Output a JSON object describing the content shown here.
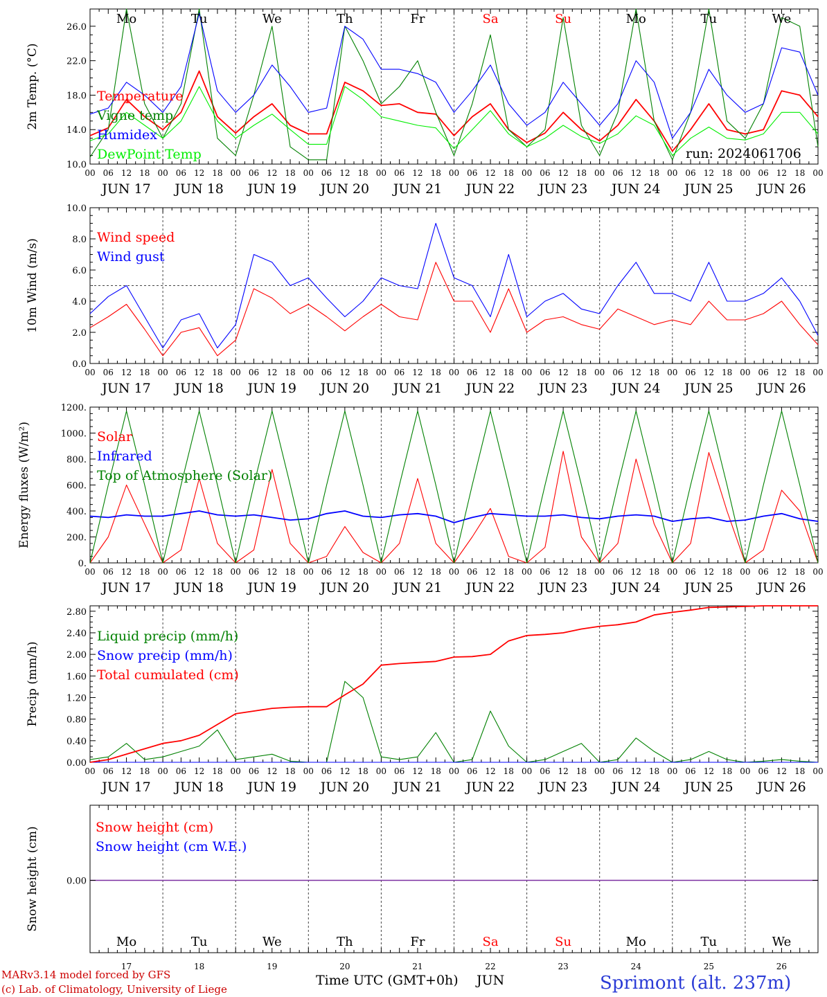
{
  "run_label": "run: 2024061706",
  "footer": {
    "model": "MARv3.14 model forced by GFS",
    "credit": "(c) Lab. of Climatology, University of Liege",
    "xaxis_title": "Time UTC (GMT+0h)",
    "month": "JUN",
    "station": "Sprimont (alt. 237m)"
  },
  "days": {
    "names": [
      "Mo",
      "Tu",
      "We",
      "Th",
      "Fr",
      "Sa",
      "Su",
      "Mo",
      "Tu",
      "We"
    ],
    "weekend_flags": [
      false,
      false,
      false,
      false,
      false,
      true,
      true,
      false,
      false,
      false
    ],
    "dates": [
      "JUN 17",
      "JUN 18",
      "JUN 19",
      "JUN 20",
      "JUN 21",
      "JUN 22",
      "JUN 23",
      "JUN 24",
      "JUN 25",
      "JUN 26"
    ],
    "numbers": [
      "17",
      "18",
      "19",
      "20",
      "21",
      "22",
      "23",
      "24",
      "25",
      "26"
    ],
    "hours": [
      "00",
      "06",
      "12",
      "18"
    ],
    "end_hour": "00"
  },
  "colors": {
    "red": "#ff0000",
    "green": "#008000",
    "blue": "#0000ff",
    "lightgreen": "#00ee00",
    "weekend": "#ff0000"
  },
  "chart_data": [
    {
      "id": "temp",
      "type": "line",
      "ylabel": "2m Temp. (°C)",
      "ylim": [
        10,
        28
      ],
      "yticks": [
        "10.0",
        "14.0",
        "18.0",
        "22.0",
        "26.0"
      ],
      "x_hours": [
        0,
        6,
        12,
        18,
        24,
        30,
        36,
        42,
        48,
        54,
        60,
        66,
        72,
        78,
        84,
        90,
        96,
        102,
        108,
        114,
        120,
        126,
        132,
        138,
        144,
        150,
        156,
        162,
        168,
        174,
        180,
        186,
        192,
        198,
        204,
        210,
        216,
        222,
        228,
        234,
        240
      ],
      "series": [
        {
          "name": "Temperature",
          "color": "#ff0000",
          "values": [
            13.3,
            14.2,
            17.5,
            15.5,
            14.0,
            16.0,
            20.8,
            15.5,
            13.6,
            15.5,
            17.0,
            14.5,
            13.5,
            13.5,
            19.5,
            18.5,
            16.8,
            17.0,
            16.0,
            15.8,
            13.3,
            15.5,
            17.0,
            14.0,
            12.5,
            13.6,
            16.0,
            14.0,
            12.7,
            14.5,
            17.5,
            15.0,
            11.5,
            14.0,
            17.0,
            14.0,
            13.5,
            14.0,
            18.5,
            18.0,
            15.5
          ]
        },
        {
          "name": "Vigne temp",
          "color": "#008000",
          "values": [
            10.8,
            14.0,
            28.0,
            17.0,
            13.0,
            17.0,
            28.0,
            13.0,
            11.0,
            18.0,
            26.0,
            12.0,
            10.5,
            10.5,
            26.0,
            22.0,
            17.0,
            19.0,
            22.0,
            16.0,
            11.0,
            17.0,
            25.0,
            14.0,
            12.0,
            14.0,
            27.0,
            14.5,
            11.0,
            16.0,
            28.0,
            15.0,
            10.5,
            16.0,
            28.0,
            15.0,
            13.0,
            17.0,
            27.0,
            26.0,
            12.0
          ]
        },
        {
          "name": "Humidex",
          "color": "#0000ff",
          "values": [
            15.8,
            16.5,
            19.5,
            18.0,
            16.0,
            19.0,
            27.5,
            18.5,
            16.0,
            18.0,
            21.5,
            19.0,
            16.0,
            16.5,
            26.0,
            24.5,
            21.0,
            21.0,
            20.5,
            19.5,
            16.0,
            18.5,
            21.5,
            17.0,
            14.5,
            16.0,
            19.5,
            17.0,
            14.5,
            17.0,
            22.0,
            19.5,
            13.0,
            16.0,
            21.0,
            18.0,
            16.0,
            17.0,
            23.5,
            23.0,
            18.0
          ]
        },
        {
          "name": "DewPoint Temp",
          "color": "#00ee00",
          "values": [
            12.7,
            13.5,
            16.0,
            14.5,
            13.0,
            15.0,
            19.0,
            15.0,
            13.0,
            14.5,
            15.8,
            14.0,
            12.3,
            12.3,
            19.0,
            17.5,
            15.5,
            15.0,
            14.5,
            14.2,
            11.8,
            14.0,
            16.2,
            13.5,
            12.0,
            13.0,
            14.5,
            13.2,
            12.4,
            13.5,
            15.6,
            14.5,
            11.0,
            13.0,
            14.3,
            13.0,
            12.8,
            13.5,
            16.0,
            16.0,
            13.5
          ]
        }
      ]
    },
    {
      "id": "wind",
      "type": "line",
      "ylabel": "10m Wind (m/s)",
      "ylim": [
        0,
        10
      ],
      "yticks": [
        "0.0",
        "2.0",
        "4.0",
        "6.0",
        "8.0",
        "10.0"
      ],
      "reference_line": 5,
      "x_hours": [
        0,
        6,
        12,
        18,
        24,
        30,
        36,
        42,
        48,
        54,
        60,
        66,
        72,
        78,
        84,
        90,
        96,
        102,
        108,
        114,
        120,
        126,
        132,
        138,
        144,
        150,
        156,
        162,
        168,
        174,
        180,
        186,
        192,
        198,
        204,
        210,
        216,
        222,
        228,
        234,
        240
      ],
      "series": [
        {
          "name": "Wind speed",
          "color": "#ff0000",
          "values": [
            2.3,
            3.0,
            3.8,
            2.2,
            0.5,
            2.0,
            2.3,
            0.5,
            1.5,
            4.8,
            4.2,
            3.2,
            3.8,
            3.0,
            2.1,
            3.0,
            3.8,
            3.0,
            2.8,
            6.5,
            4.0,
            4.0,
            2.0,
            4.8,
            2.0,
            2.8,
            3.0,
            2.5,
            2.2,
            3.5,
            3.0,
            2.5,
            2.8,
            2.5,
            4.0,
            2.8,
            2.8,
            3.2,
            4.0,
            2.5,
            1.2
          ]
        },
        {
          "name": "Wind gust",
          "color": "#0000ff",
          "values": [
            3.2,
            4.3,
            5.0,
            3.0,
            1.0,
            2.8,
            3.2,
            1.0,
            2.5,
            7.0,
            6.5,
            5.0,
            5.5,
            4.2,
            3.0,
            4.0,
            5.5,
            5.0,
            4.8,
            9.0,
            5.5,
            5.0,
            3.0,
            7.0,
            3.0,
            4.0,
            4.5,
            3.5,
            3.2,
            5.0,
            6.5,
            4.5,
            4.5,
            4.0,
            6.5,
            4.0,
            4.0,
            4.5,
            5.5,
            4.0,
            1.8
          ]
        }
      ]
    },
    {
      "id": "energy",
      "type": "line",
      "ylabel": "Energy fluxes (W/m²)",
      "ylim": [
        0,
        1200
      ],
      "yticks": [
        "0.",
        "200.",
        "400.",
        "600.",
        "800.",
        "1000.",
        "1200."
      ],
      "x_hours": [
        0,
        6,
        12,
        18,
        24,
        30,
        36,
        42,
        48,
        54,
        60,
        66,
        72,
        78,
        84,
        90,
        96,
        102,
        108,
        114,
        120,
        126,
        132,
        138,
        144,
        150,
        156,
        162,
        168,
        174,
        180,
        186,
        192,
        198,
        204,
        210,
        216,
        222,
        228,
        234,
        240
      ],
      "series": [
        {
          "name": "Solar",
          "color": "#ff0000",
          "values": [
            0,
            200,
            600,
            300,
            0,
            100,
            650,
            150,
            0,
            100,
            720,
            150,
            0,
            50,
            280,
            80,
            0,
            150,
            650,
            150,
            0,
            200,
            420,
            50,
            0,
            120,
            860,
            200,
            0,
            150,
            800,
            300,
            0,
            150,
            850,
            400,
            0,
            100,
            560,
            400,
            0
          ]
        },
        {
          "name": "Infrared",
          "color": "#0000ff",
          "values": [
            360,
            350,
            370,
            360,
            360,
            380,
            400,
            370,
            360,
            370,
            350,
            330,
            340,
            380,
            400,
            360,
            350,
            370,
            380,
            360,
            310,
            350,
            380,
            370,
            360,
            360,
            370,
            350,
            340,
            360,
            370,
            360,
            320,
            340,
            350,
            320,
            330,
            360,
            380,
            340,
            320
          ]
        },
        {
          "name": "Top of Atmosphere (Solar)",
          "color": "#008000",
          "values": [
            0,
            600,
            1170,
            600,
            0,
            600,
            1170,
            600,
            0,
            600,
            1170,
            600,
            0,
            600,
            1170,
            600,
            0,
            600,
            1170,
            600,
            0,
            600,
            1170,
            600,
            0,
            600,
            1170,
            600,
            0,
            600,
            1170,
            600,
            0,
            600,
            1170,
            600,
            0,
            600,
            1170,
            600,
            0
          ]
        }
      ]
    },
    {
      "id": "precip",
      "type": "line",
      "ylabel": "Precip (mm/h)",
      "ylim": [
        0,
        2.9
      ],
      "yticks": [
        "0.00",
        "0.40",
        "0.80",
        "1.20",
        "1.60",
        "2.00",
        "2.40",
        "2.80"
      ],
      "x_hours": [
        0,
        6,
        12,
        18,
        24,
        30,
        36,
        42,
        48,
        54,
        60,
        66,
        72,
        78,
        84,
        90,
        96,
        102,
        108,
        114,
        120,
        126,
        132,
        138,
        144,
        150,
        156,
        162,
        168,
        174,
        180,
        186,
        192,
        198,
        204,
        210,
        216,
        222,
        228,
        234,
        240
      ],
      "series": [
        {
          "name": "Liquid precip (mm/h)",
          "color": "#008000",
          "values": [
            0.05,
            0.1,
            0.35,
            0.05,
            0.1,
            0.2,
            0.3,
            0.6,
            0.05,
            0.1,
            0.15,
            0.02,
            0.0,
            0.0,
            1.5,
            1.2,
            0.1,
            0.05,
            0.1,
            0.55,
            0.0,
            0.05,
            0.95,
            0.3,
            0.0,
            0.05,
            0.2,
            0.35,
            0.0,
            0.05,
            0.45,
            0.2,
            0.0,
            0.05,
            0.2,
            0.05,
            0.0,
            0.02,
            0.05,
            0.02,
            0.0
          ]
        },
        {
          "name": "Snow precip (mm/h)",
          "color": "#0000ff",
          "values": [
            0,
            0,
            0,
            0,
            0,
            0,
            0,
            0,
            0,
            0,
            0,
            0,
            0,
            0,
            0,
            0,
            0,
            0,
            0,
            0,
            0,
            0,
            0,
            0,
            0,
            0,
            0,
            0,
            0,
            0,
            0,
            0,
            0,
            0,
            0,
            0,
            0,
            0,
            0,
            0,
            0
          ]
        },
        {
          "name": "Total cumulated (cm)",
          "color": "#ff0000",
          "values": [
            0.0,
            0.05,
            0.15,
            0.25,
            0.35,
            0.4,
            0.5,
            0.7,
            0.9,
            0.95,
            1.0,
            1.02,
            1.03,
            1.03,
            1.25,
            1.45,
            1.8,
            1.83,
            1.85,
            1.87,
            1.95,
            1.96,
            2.0,
            2.25,
            2.35,
            2.37,
            2.4,
            2.47,
            2.52,
            2.55,
            2.6,
            2.73,
            2.78,
            2.82,
            2.87,
            2.88,
            2.89,
            2.9,
            2.9,
            2.9,
            2.9
          ]
        }
      ]
    },
    {
      "id": "snow",
      "type": "line",
      "ylabel": "Snow height (cm)",
      "ytick": "0.00",
      "x_hours": [
        0,
        240
      ],
      "series": [
        {
          "name": "Snow height (cm)",
          "color": "#ff0000",
          "values": [
            0,
            0
          ]
        },
        {
          "name": "Snow height (cm W.E.)",
          "color": "#0000ff",
          "values": [
            0,
            0
          ]
        }
      ]
    }
  ]
}
